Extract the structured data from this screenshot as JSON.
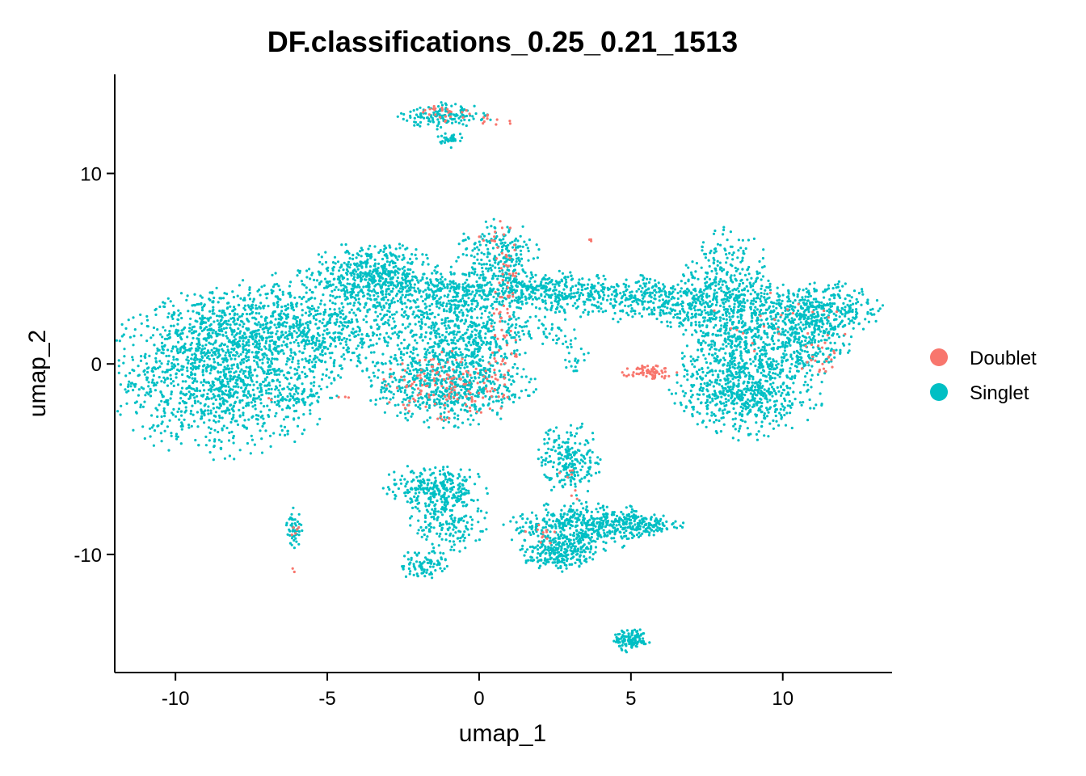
{
  "chart_data": {
    "type": "scatter",
    "title": "DF.classifications_0.25_0.21_1513",
    "xlabel": "umap_1",
    "ylabel": "umap_2",
    "xlim": [
      -12,
      13.6
    ],
    "ylim": [
      -16.2,
      15.2
    ],
    "x_ticks": [
      -10,
      -5,
      0,
      5,
      10
    ],
    "y_ticks": [
      -10,
      0,
      10
    ],
    "x_tick_labels": [
      "-10",
      "-5",
      "0",
      "5",
      "10"
    ],
    "y_tick_labels": [
      "-10",
      "0",
      "10"
    ],
    "grid": false,
    "legend_position": "right",
    "series": [
      {
        "name": "Doublet",
        "color": "#F8766D",
        "clusters": [
          {
            "cx": -1.2,
            "cy": 13.2,
            "rx": 0.6,
            "ry": 0.3,
            "n": 25
          },
          {
            "cx": 0.5,
            "cy": 12.8,
            "rx": 0.5,
            "ry": 0.2,
            "n": 10
          },
          {
            "cx": -1.0,
            "cy": -1.2,
            "rx": 1.3,
            "ry": 1.1,
            "n": 140
          },
          {
            "cx": 0.8,
            "cy": 0.5,
            "rx": 0.3,
            "ry": 2.0,
            "n": 40
          },
          {
            "cx": 0.9,
            "cy": 4.5,
            "rx": 0.25,
            "ry": 2.0,
            "n": 35
          },
          {
            "cx": 0.4,
            "cy": 6.6,
            "rx": 0.3,
            "ry": 0.3,
            "n": 8
          },
          {
            "cx": 5.6,
            "cy": -0.4,
            "rx": 0.55,
            "ry": 0.22,
            "n": 70
          },
          {
            "cx": 11.2,
            "cy": 0.4,
            "rx": 0.4,
            "ry": 0.6,
            "n": 20
          },
          {
            "cx": 10.0,
            "cy": 2.0,
            "rx": 1.6,
            "ry": 1.2,
            "n": 25
          },
          {
            "cx": 2.0,
            "cy": -9.0,
            "rx": 0.3,
            "ry": 0.4,
            "n": 12
          },
          {
            "cx": 3.0,
            "cy": -6.5,
            "rx": 0.3,
            "ry": 1.0,
            "n": 8
          },
          {
            "cx": -6.1,
            "cy": -8.8,
            "rx": 0.12,
            "ry": 0.3,
            "n": 5
          },
          {
            "cx": -4.6,
            "cy": -1.7,
            "rx": 0.3,
            "ry": 0.1,
            "n": 3
          },
          {
            "cx": 3.6,
            "cy": 6.5,
            "rx": 0.1,
            "ry": 0.1,
            "n": 3
          },
          {
            "cx": -6.8,
            "cy": -1.8,
            "rx": 0.2,
            "ry": 0.1,
            "n": 2
          },
          {
            "cx": -6.1,
            "cy": -10.8,
            "rx": 0.1,
            "ry": 0.1,
            "n": 2
          }
        ]
      },
      {
        "name": "Singlet",
        "color": "#00BFC4",
        "clusters": [
          {
            "cx": -8.5,
            "cy": -0.5,
            "rx": 2.2,
            "ry": 2.5,
            "n": 1400
          },
          {
            "cx": -5.5,
            "cy": 2.0,
            "rx": 2.8,
            "ry": 1.6,
            "n": 900
          },
          {
            "cx": -3.5,
            "cy": 4.8,
            "rx": 1.2,
            "ry": 0.9,
            "n": 400
          },
          {
            "cx": -1.0,
            "cy": 3.8,
            "rx": 2.2,
            "ry": 0.8,
            "n": 450
          },
          {
            "cx": 2.8,
            "cy": 3.8,
            "rx": 2.4,
            "ry": 0.6,
            "n": 400
          },
          {
            "cx": 6.0,
            "cy": 3.2,
            "rx": 1.6,
            "ry": 0.7,
            "n": 300
          },
          {
            "cx": 8.2,
            "cy": 2.5,
            "rx": 1.0,
            "ry": 2.6,
            "n": 700
          },
          {
            "cx": 8.8,
            "cy": -1.5,
            "rx": 1.4,
            "ry": 1.4,
            "n": 600
          },
          {
            "cx": 11.0,
            "cy": 2.8,
            "rx": 1.3,
            "ry": 0.9,
            "n": 450
          },
          {
            "cx": 10.5,
            "cy": 0.8,
            "rx": 1.0,
            "ry": 1.0,
            "n": 250
          },
          {
            "cx": -1.0,
            "cy": -1.0,
            "rx": 1.6,
            "ry": 1.3,
            "n": 700
          },
          {
            "cx": -0.2,
            "cy": 1.6,
            "rx": 1.3,
            "ry": 1.0,
            "n": 350
          },
          {
            "cx": 0.6,
            "cy": 5.8,
            "rx": 0.8,
            "ry": 1.0,
            "n": 200
          },
          {
            "cx": -1.1,
            "cy": 13.0,
            "rx": 0.9,
            "ry": 0.4,
            "n": 140
          },
          {
            "cx": -1.0,
            "cy": 11.8,
            "rx": 0.3,
            "ry": 0.25,
            "n": 30
          },
          {
            "cx": 2.5,
            "cy": 1.8,
            "rx": 0.5,
            "ry": 1.0,
            "n": 50
          },
          {
            "cx": -1.5,
            "cy": -6.5,
            "rx": 1.0,
            "ry": 0.7,
            "n": 250
          },
          {
            "cx": -1.0,
            "cy": -8.2,
            "rx": 0.7,
            "ry": 1.0,
            "n": 180
          },
          {
            "cx": -1.8,
            "cy": -10.5,
            "rx": 0.5,
            "ry": 0.5,
            "n": 90
          },
          {
            "cx": 3.0,
            "cy": -5.0,
            "rx": 0.6,
            "ry": 1.1,
            "n": 220
          },
          {
            "cx": 3.4,
            "cy": -8.6,
            "rx": 1.5,
            "ry": 0.8,
            "n": 500
          },
          {
            "cx": 2.6,
            "cy": -10.0,
            "rx": 0.7,
            "ry": 0.5,
            "n": 200
          },
          {
            "cx": 5.2,
            "cy": -8.4,
            "rx": 0.9,
            "ry": 0.35,
            "n": 150
          },
          {
            "cx": 5.0,
            "cy": -14.5,
            "rx": 0.35,
            "ry": 0.35,
            "n": 120
          },
          {
            "cx": -6.1,
            "cy": -8.6,
            "rx": 0.15,
            "ry": 0.6,
            "n": 50
          },
          {
            "cx": -6.0,
            "cy": -1.7,
            "rx": 0.5,
            "ry": 0.3,
            "n": 40
          },
          {
            "cx": 3.3,
            "cy": 0.3,
            "rx": 0.3,
            "ry": 0.6,
            "n": 20
          }
        ]
      }
    ]
  }
}
